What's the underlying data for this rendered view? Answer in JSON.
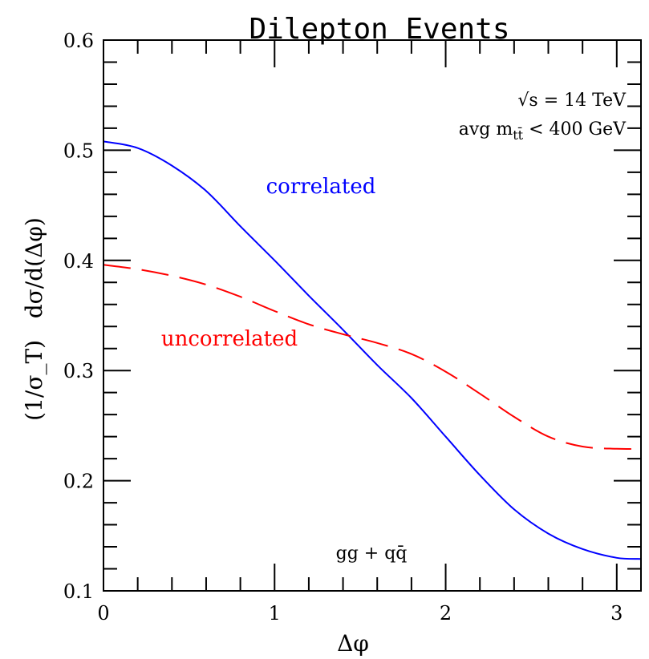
{
  "chart_data": {
    "type": "line",
    "title": "Dilepton Events",
    "xlabel": "Δφ",
    "ylabel": "(1/σ_T)   dσ/d(Δφ)",
    "xlim": [
      0,
      3.1416
    ],
    "ylim": [
      0.1,
      0.6
    ],
    "x_ticks": [
      0,
      1,
      2,
      3
    ],
    "y_ticks": [
      0.1,
      0.2,
      0.3,
      0.4,
      0.5,
      0.6
    ],
    "x_tick_labels": [
      "0",
      "1",
      "2",
      "3"
    ],
    "y_tick_labels": [
      "0.1",
      "0.2",
      "0.3",
      "0.4",
      "0.5",
      "0.6"
    ],
    "annotations": {
      "energy": "√s = 14 TeV",
      "mass_cut_prefix": "avg m",
      "mass_cut_subscript": "tt̄",
      "mass_cut_suffix": " < 400 GeV",
      "process": "gg + qq̄"
    },
    "series": [
      {
        "name": "correlated",
        "color": "#0000ff",
        "style": "solid",
        "x": [
          0.0,
          0.2,
          0.4,
          0.6,
          0.8,
          1.0,
          1.2,
          1.4,
          1.6,
          1.8,
          2.0,
          2.2,
          2.4,
          2.6,
          2.8,
          3.0,
          3.1416
        ],
        "y": [
          0.508,
          0.502,
          0.486,
          0.463,
          0.431,
          0.4,
          0.368,
          0.337,
          0.305,
          0.275,
          0.24,
          0.205,
          0.174,
          0.152,
          0.138,
          0.13,
          0.129
        ]
      },
      {
        "name": "uncorrelated",
        "color": "#ff0000",
        "style": "dashed",
        "x": [
          0.0,
          0.2,
          0.4,
          0.6,
          0.8,
          1.0,
          1.2,
          1.4,
          1.6,
          1.8,
          2.0,
          2.2,
          2.4,
          2.6,
          2.8,
          3.0,
          3.1416
        ],
        "y": [
          0.396,
          0.392,
          0.386,
          0.378,
          0.367,
          0.354,
          0.342,
          0.333,
          0.325,
          0.315,
          0.299,
          0.279,
          0.258,
          0.24,
          0.231,
          0.229,
          0.229
        ]
      }
    ]
  }
}
